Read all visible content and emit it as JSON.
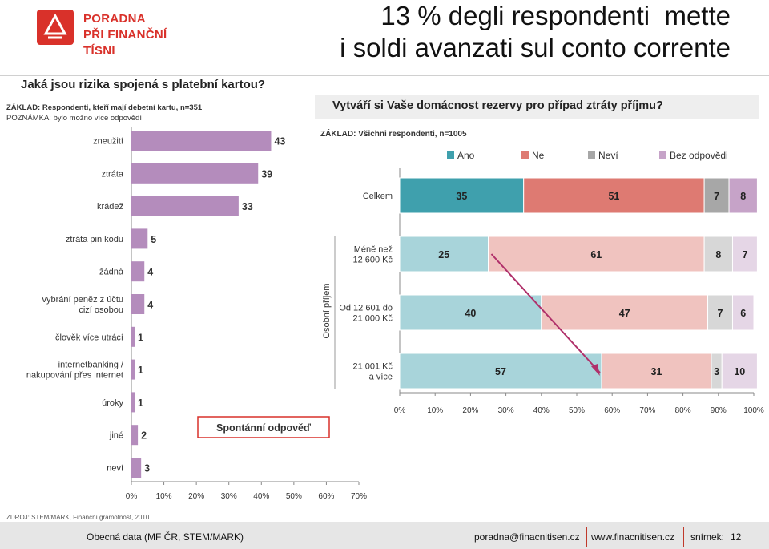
{
  "header": {
    "logo_line1": "PORADNA",
    "logo_line2": "PŘI FINANČNÍ TÍSNI",
    "title_line1": "13 % degli respondenti  mette",
    "title_line2": "i soldi avanzati sul conto corrente"
  },
  "footer": {
    "left": "Obecná data  (MF ČR, STEM/MARK)",
    "email": "poradna@finacnitisen.cz",
    "web": "www.finacnitisen.cz",
    "slide_label": "snímek:",
    "slide_number": "12"
  },
  "colors": {
    "accent_red": "#d9312a",
    "bar_purple": "#b48cbc",
    "ano": "#3fa0ad",
    "ne": "#de7a72",
    "nevi": "#a7a7a7",
    "bez": "#c6a3c8",
    "arrow": "#b0306a"
  },
  "chart_data": [
    {
      "type": "bar",
      "orientation": "horizontal",
      "title": "Jaká jsou rizika spojená s platební kartou?",
      "base_note": "ZÁKLAD: Respondenti, kteří mají debetní kartu, n=351",
      "remark_note": "POZNÁMKA: bylo možno více odpovědí",
      "categories": [
        "zneužití",
        "ztráta",
        "krádež",
        "ztráta pin kódu",
        "žádná",
        "vybrání peněz z účtu cizí osobou",
        "člověk více utrácí",
        "internetbanking / nakupování přes internet",
        "úroky",
        "jiné",
        "neví"
      ],
      "category_lines": [
        [
          "zneužití"
        ],
        [
          "ztráta"
        ],
        [
          "krádež"
        ],
        [
          "ztráta pin kódu"
        ],
        [
          "žádná"
        ],
        [
          "vybrání peněz z účtu",
          "cizí osobou"
        ],
        [
          "člověk více utrácí"
        ],
        [
          "internetbanking /",
          "nakupování přes internet"
        ],
        [
          "úroky"
        ],
        [
          "jiné"
        ],
        [
          "neví"
        ]
      ],
      "values": [
        43,
        39,
        33,
        5,
        4,
        4,
        1,
        1,
        1,
        2,
        3
      ],
      "xlim": [
        0,
        70
      ],
      "xticks": [
        "0%",
        "10%",
        "20%",
        "30%",
        "40%",
        "50%",
        "60%",
        "70%"
      ],
      "annotation": "Spontánní odpověď",
      "source": "ZDROJ: STEM/MARK, Finanční gramotnost, 2010"
    },
    {
      "type": "bar",
      "orientation": "horizontal",
      "stacked": true,
      "title": "Vytváří si Vaše domácnost rezervy pro případ ztráty příjmu?",
      "base_note": "ZÁKLAD: Všichni respondenti, n=1005",
      "legend": [
        "Ano",
        "Ne",
        "Neví",
        "Bez odpovědi"
      ],
      "axis_group_label": "Osobní příjem",
      "categories": [
        "Celkem",
        "Méně než 12 600 Kč",
        "Od 12 601 do 21 000 Kč",
        "21 001 Kč a více"
      ],
      "category_lines": [
        [
          "Celkem"
        ],
        [
          "Méně než",
          "12 600 Kč"
        ],
        [
          "Od 12 601 do",
          "21 000 Kč"
        ],
        [
          "21 001 Kč",
          "a více"
        ]
      ],
      "series": [
        {
          "name": "Ano",
          "values": [
            35,
            25,
            40,
            57
          ]
        },
        {
          "name": "Ne",
          "values": [
            51,
            61,
            47,
            31
          ]
        },
        {
          "name": "Neví",
          "values": [
            7,
            8,
            7,
            3
          ]
        },
        {
          "name": "Bez odpovědi",
          "values": [
            8,
            7,
            6,
            10
          ]
        }
      ],
      "xlim": [
        0,
        100
      ],
      "xticks": [
        "0%",
        "10%",
        "20%",
        "30%",
        "40%",
        "50%",
        "60%",
        "70%",
        "80%",
        "90%",
        "100%"
      ]
    }
  ]
}
